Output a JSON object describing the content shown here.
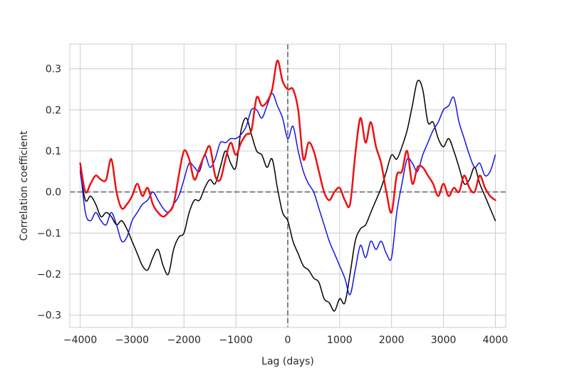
{
  "chart_data": {
    "type": "line",
    "title": "",
    "xlabel": "Lag (days)",
    "ylabel": "Correlation coefficient",
    "xlim": [
      -4200,
      4200
    ],
    "ylim": [
      -0.33,
      0.36
    ],
    "xticks": [
      -4000,
      -3000,
      -2000,
      -1000,
      0,
      1000,
      2000,
      3000,
      4000
    ],
    "xtick_labels": [
      "−4000",
      "−3000",
      "−2000",
      "−1000",
      "0",
      "1000",
      "2000",
      "3000",
      "4000"
    ],
    "yticks": [
      -0.3,
      -0.2,
      -0.1,
      0.0,
      0.1,
      0.2,
      0.3
    ],
    "ytick_labels": [
      "−0.3",
      "−0.2",
      "−0.1",
      "0.0",
      "0.1",
      "0.2",
      "0.3"
    ],
    "grid": true,
    "reference_lines": [
      {
        "orientation": "horizontal",
        "value": 0,
        "style": "dashed",
        "color": "#808080"
      },
      {
        "orientation": "vertical",
        "value": 0,
        "style": "dashed",
        "color": "#808080"
      }
    ],
    "series": [
      {
        "color": "#000000",
        "width": 1.5,
        "points": [
          [
            -4000,
            0.05
          ],
          [
            -3900,
            -0.02
          ],
          [
            -3800,
            -0.01
          ],
          [
            -3700,
            -0.03
          ],
          [
            -3600,
            -0.06
          ],
          [
            -3500,
            -0.05
          ],
          [
            -3400,
            -0.06
          ],
          [
            -3300,
            -0.08
          ],
          [
            -3200,
            -0.07
          ],
          [
            -3100,
            -0.09
          ],
          [
            -3000,
            -0.12
          ],
          [
            -2900,
            -0.15
          ],
          [
            -2800,
            -0.18
          ],
          [
            -2700,
            -0.19
          ],
          [
            -2600,
            -0.16
          ],
          [
            -2500,
            -0.14
          ],
          [
            -2400,
            -0.18
          ],
          [
            -2300,
            -0.2
          ],
          [
            -2200,
            -0.14
          ],
          [
            -2100,
            -0.11
          ],
          [
            -2000,
            -0.1
          ],
          [
            -1900,
            -0.05
          ],
          [
            -1800,
            -0.02
          ],
          [
            -1700,
            -0.02
          ],
          [
            -1600,
            0.01
          ],
          [
            -1500,
            0.03
          ],
          [
            -1400,
            0.02
          ],
          [
            -1300,
            0.06
          ],
          [
            -1200,
            0.1
          ],
          [
            -1100,
            0.07
          ],
          [
            -1000,
            0.06
          ],
          [
            -900,
            0.15
          ],
          [
            -800,
            0.18
          ],
          [
            -700,
            0.14
          ],
          [
            -600,
            0.1
          ],
          [
            -500,
            0.09
          ],
          [
            -400,
            0.06
          ],
          [
            -300,
            0.08
          ],
          [
            -200,
            0.01
          ],
          [
            -100,
            -0.05
          ],
          [
            0,
            -0.07
          ],
          [
            100,
            -0.12
          ],
          [
            200,
            -0.15
          ],
          [
            300,
            -0.18
          ],
          [
            400,
            -0.19
          ],
          [
            500,
            -0.21
          ],
          [
            600,
            -0.22
          ],
          [
            700,
            -0.26
          ],
          [
            800,
            -0.27
          ],
          [
            900,
            -0.29
          ],
          [
            1000,
            -0.26
          ],
          [
            1100,
            -0.27
          ],
          [
            1200,
            -0.2
          ],
          [
            1300,
            -0.12
          ],
          [
            1400,
            -0.09
          ],
          [
            1500,
            -0.08
          ],
          [
            1600,
            -0.05
          ],
          [
            1700,
            -0.02
          ],
          [
            1800,
            0.01
          ],
          [
            1900,
            0.05
          ],
          [
            2000,
            0.09
          ],
          [
            2100,
            0.08
          ],
          [
            2200,
            0.11
          ],
          [
            2300,
            0.15
          ],
          [
            2400,
            0.21
          ],
          [
            2500,
            0.27
          ],
          [
            2600,
            0.25
          ],
          [
            2700,
            0.17
          ],
          [
            2800,
            0.17
          ],
          [
            2900,
            0.13
          ],
          [
            3000,
            0.11
          ],
          [
            3100,
            0.13
          ],
          [
            3200,
            0.1
          ],
          [
            3300,
            0.06
          ],
          [
            3400,
            0.02
          ],
          [
            3500,
            0.03
          ],
          [
            3600,
            0.06
          ],
          [
            3700,
            0.02
          ],
          [
            3800,
            -0.01
          ],
          [
            3900,
            -0.04
          ],
          [
            4000,
            -0.07
          ]
        ]
      },
      {
        "color": "#1414e6",
        "width": 1.5,
        "points": [
          [
            -4000,
            0.06
          ],
          [
            -3900,
            -0.05
          ],
          [
            -3800,
            -0.07
          ],
          [
            -3700,
            -0.05
          ],
          [
            -3600,
            -0.07
          ],
          [
            -3500,
            -0.08
          ],
          [
            -3400,
            -0.05
          ],
          [
            -3300,
            -0.08
          ],
          [
            -3200,
            -0.12
          ],
          [
            -3100,
            -0.11
          ],
          [
            -3000,
            -0.07
          ],
          [
            -2900,
            -0.05
          ],
          [
            -2800,
            -0.03
          ],
          [
            -2700,
            -0.02
          ],
          [
            -2600,
            0.0
          ],
          [
            -2500,
            -0.02
          ],
          [
            -2400,
            -0.04
          ],
          [
            -2300,
            -0.05
          ],
          [
            -2200,
            -0.03
          ],
          [
            -2100,
            -0.01
          ],
          [
            -2000,
            0.03
          ],
          [
            -1900,
            0.07
          ],
          [
            -1800,
            0.06
          ],
          [
            -1700,
            0.05
          ],
          [
            -1600,
            0.09
          ],
          [
            -1500,
            0.06
          ],
          [
            -1400,
            0.08
          ],
          [
            -1300,
            0.12
          ],
          [
            -1200,
            0.12
          ],
          [
            -1100,
            0.13
          ],
          [
            -1000,
            0.13
          ],
          [
            -900,
            0.14
          ],
          [
            -800,
            0.16
          ],
          [
            -700,
            0.2
          ],
          [
            -600,
            0.2
          ],
          [
            -500,
            0.18
          ],
          [
            -400,
            0.21
          ],
          [
            -300,
            0.24
          ],
          [
            -200,
            0.21
          ],
          [
            -100,
            0.18
          ],
          [
            0,
            0.13
          ],
          [
            100,
            0.16
          ],
          [
            200,
            0.1
          ],
          [
            300,
            0.05
          ],
          [
            400,
            0.02
          ],
          [
            500,
            0.0
          ],
          [
            600,
            -0.04
          ],
          [
            700,
            -0.08
          ],
          [
            800,
            -0.12
          ],
          [
            900,
            -0.15
          ],
          [
            1000,
            -0.18
          ],
          [
            1100,
            -0.21
          ],
          [
            1200,
            -0.25
          ],
          [
            1300,
            -0.19
          ],
          [
            1400,
            -0.13
          ],
          [
            1500,
            -0.16
          ],
          [
            1600,
            -0.12
          ],
          [
            1700,
            -0.14
          ],
          [
            1800,
            -0.12
          ],
          [
            1900,
            -0.15
          ],
          [
            2000,
            -0.16
          ],
          [
            2100,
            -0.05
          ],
          [
            2200,
            0.02
          ],
          [
            2300,
            0.08
          ],
          [
            2400,
            0.07
          ],
          [
            2500,
            0.05
          ],
          [
            2600,
            0.09
          ],
          [
            2700,
            0.12
          ],
          [
            2800,
            0.15
          ],
          [
            2900,
            0.17
          ],
          [
            3000,
            0.2
          ],
          [
            3100,
            0.21
          ],
          [
            3200,
            0.23
          ],
          [
            3300,
            0.17
          ],
          [
            3400,
            0.13
          ],
          [
            3500,
            0.09
          ],
          [
            3600,
            0.06
          ],
          [
            3700,
            0.07
          ],
          [
            3800,
            0.04
          ],
          [
            3900,
            0.05
          ],
          [
            4000,
            0.09
          ]
        ]
      },
      {
        "color": "#ee1111",
        "width": 2.5,
        "points": [
          [
            -4000,
            0.07
          ],
          [
            -3900,
            0.0
          ],
          [
            -3800,
            0.02
          ],
          [
            -3700,
            0.04
          ],
          [
            -3600,
            0.03
          ],
          [
            -3500,
            0.03
          ],
          [
            -3400,
            0.08
          ],
          [
            -3300,
            0.0
          ],
          [
            -3200,
            -0.04
          ],
          [
            -3100,
            -0.03
          ],
          [
            -3000,
            -0.01
          ],
          [
            -2900,
            0.02
          ],
          [
            -2800,
            -0.01
          ],
          [
            -2700,
            0.01
          ],
          [
            -2600,
            -0.03
          ],
          [
            -2500,
            -0.05
          ],
          [
            -2400,
            -0.06
          ],
          [
            -2300,
            -0.05
          ],
          [
            -2200,
            -0.03
          ],
          [
            -2100,
            0.04
          ],
          [
            -2000,
            0.1
          ],
          [
            -1900,
            0.08
          ],
          [
            -1800,
            0.03
          ],
          [
            -1700,
            0.06
          ],
          [
            -1600,
            0.09
          ],
          [
            -1500,
            0.11
          ],
          [
            -1400,
            0.04
          ],
          [
            -1300,
            0.03
          ],
          [
            -1200,
            0.08
          ],
          [
            -1100,
            0.12
          ],
          [
            -1000,
            0.09
          ],
          [
            -900,
            0.12
          ],
          [
            -800,
            0.14
          ],
          [
            -700,
            0.15
          ],
          [
            -600,
            0.23
          ],
          [
            -500,
            0.21
          ],
          [
            -400,
            0.22
          ],
          [
            -300,
            0.25
          ],
          [
            -200,
            0.32
          ],
          [
            -100,
            0.27
          ],
          [
            0,
            0.25
          ],
          [
            100,
            0.25
          ],
          [
            200,
            0.2
          ],
          [
            300,
            0.08
          ],
          [
            400,
            0.12
          ],
          [
            500,
            0.1
          ],
          [
            600,
            0.05
          ],
          [
            700,
            0.0
          ],
          [
            800,
            -0.02
          ],
          [
            900,
            0.0
          ],
          [
            1000,
            0.01
          ],
          [
            1100,
            -0.02
          ],
          [
            1200,
            -0.03
          ],
          [
            1300,
            0.09
          ],
          [
            1400,
            0.18
          ],
          [
            1500,
            0.12
          ],
          [
            1600,
            0.17
          ],
          [
            1700,
            0.11
          ],
          [
            1800,
            0.07
          ],
          [
            1900,
            0.0
          ],
          [
            2000,
            -0.05
          ],
          [
            2100,
            0.04
          ],
          [
            2200,
            0.05
          ],
          [
            2300,
            0.1
          ],
          [
            2400,
            0.02
          ],
          [
            2500,
            0.06
          ],
          [
            2600,
            0.06
          ],
          [
            2700,
            0.04
          ],
          [
            2800,
            0.02
          ],
          [
            2900,
            -0.01
          ],
          [
            3000,
            0.02
          ],
          [
            3100,
            -0.01
          ],
          [
            3200,
            0.01
          ],
          [
            3300,
            0.0
          ],
          [
            3400,
            0.04
          ],
          [
            3500,
            0.01
          ],
          [
            3600,
            0.0
          ],
          [
            3700,
            0.04
          ],
          [
            3800,
            0.01
          ],
          [
            3900,
            -0.01
          ],
          [
            4000,
            -0.02
          ]
        ]
      }
    ]
  }
}
